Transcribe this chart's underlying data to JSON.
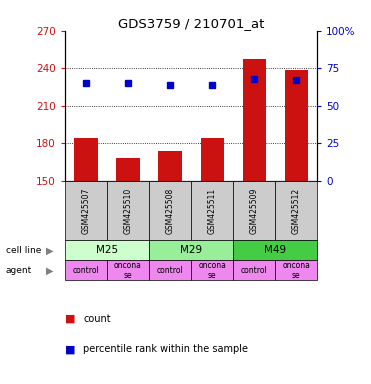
{
  "title": "GDS3759 / 210701_at",
  "samples": [
    "GSM425507",
    "GSM425510",
    "GSM425508",
    "GSM425511",
    "GSM425509",
    "GSM425512"
  ],
  "counts": [
    184,
    168,
    174,
    184,
    247,
    239
  ],
  "percentiles": [
    65,
    65,
    64,
    64,
    68,
    67
  ],
  "ylim_left": [
    150,
    270
  ],
  "ylim_right": [
    0,
    100
  ],
  "yticks_left": [
    150,
    180,
    210,
    240,
    270
  ],
  "yticks_right": [
    0,
    25,
    50,
    75,
    100
  ],
  "grid_values": [
    180,
    210,
    240
  ],
  "bar_color": "#cc1111",
  "dot_color": "#0000cc",
  "cell_lines": [
    {
      "label": "M25",
      "cols": [
        0,
        1
      ],
      "color": "#ccffcc"
    },
    {
      "label": "M29",
      "cols": [
        2,
        3
      ],
      "color": "#99ee99"
    },
    {
      "label": "M49",
      "cols": [
        4,
        5
      ],
      "color": "#44cc44"
    }
  ],
  "agents": [
    {
      "label": "control",
      "col": 0,
      "color": "#ee88ee"
    },
    {
      "label": "oncona\nse",
      "col": 1,
      "color": "#ee88ee"
    },
    {
      "label": "control",
      "col": 2,
      "color": "#ee88ee"
    },
    {
      "label": "oncona\nse",
      "col": 3,
      "color": "#ee88ee"
    },
    {
      "label": "control",
      "col": 4,
      "color": "#ee88ee"
    },
    {
      "label": "oncona\nse",
      "col": 5,
      "color": "#ee88ee"
    }
  ],
  "left_color": "#cc1111",
  "right_color": "#0000cc",
  "sample_bg": "#cccccc"
}
